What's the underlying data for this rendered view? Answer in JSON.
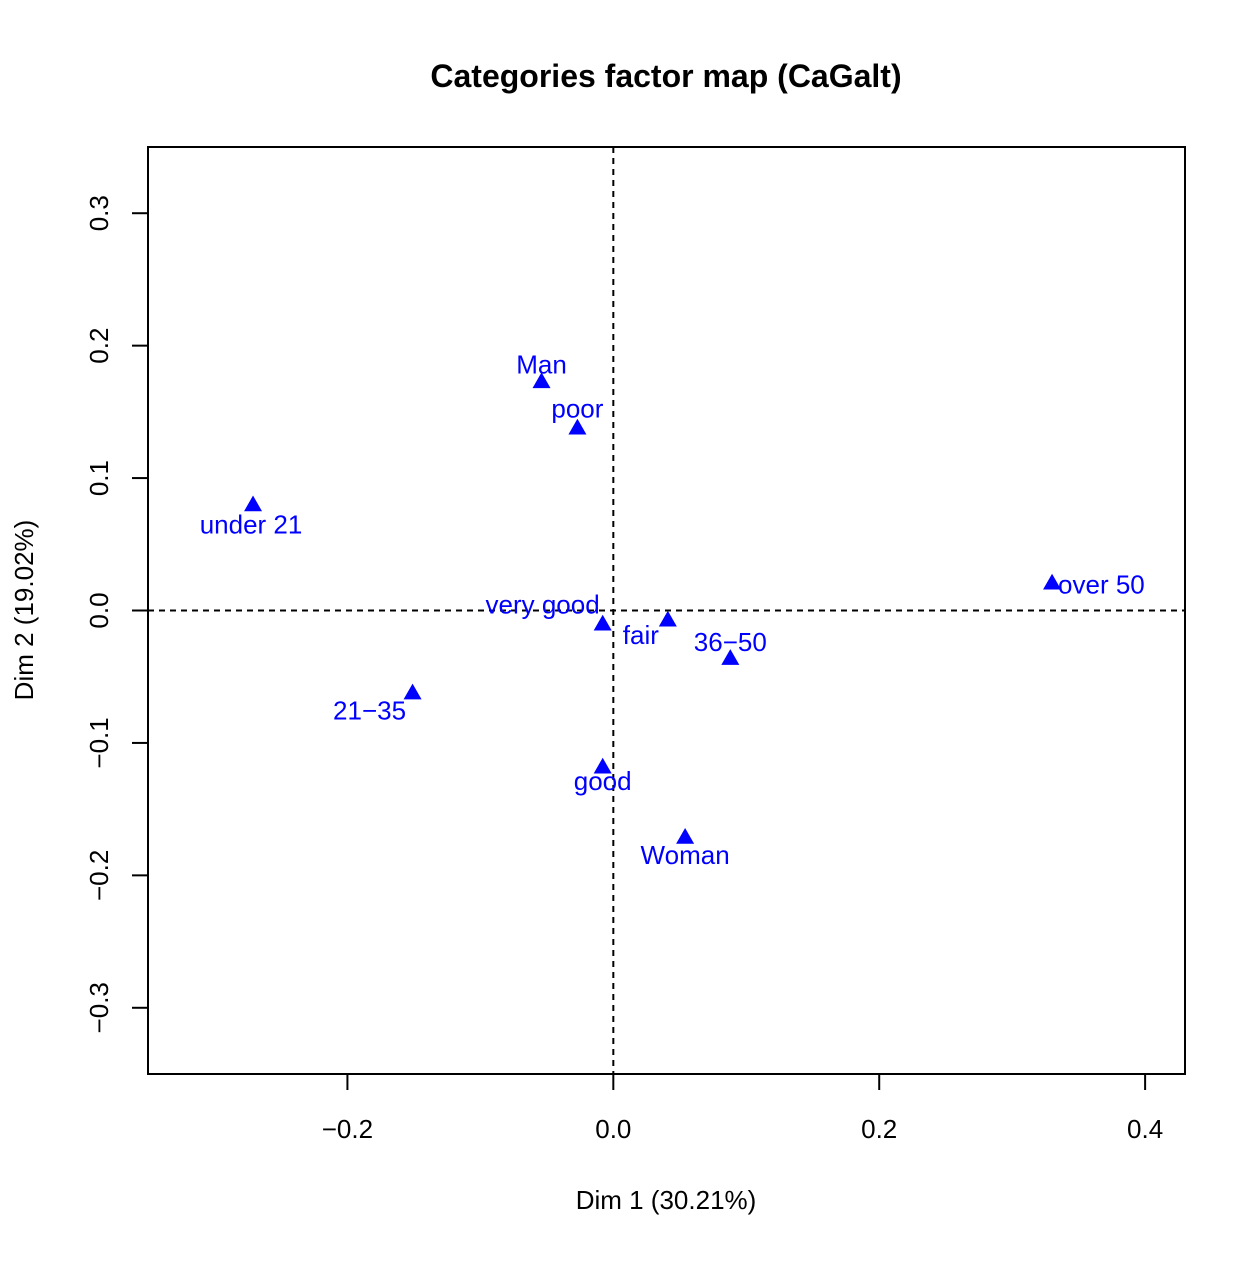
{
  "chart_data": {
    "type": "scatter",
    "title": "Categories factor map (CaGalt)",
    "xlabel": "Dim 1 (30.21%)",
    "ylabel": "Dim 2 (19.02%)",
    "xlim": [
      -0.35,
      0.43
    ],
    "ylim": [
      -0.35,
      0.35
    ],
    "x_ticks": [
      -0.2,
      0.0,
      0.2,
      0.4
    ],
    "x_tick_labels": [
      "−0.2",
      "0.0",
      "0.2",
      "0.4"
    ],
    "y_ticks": [
      -0.3,
      -0.2,
      -0.1,
      0.0,
      0.1,
      0.2,
      0.3
    ],
    "y_tick_labels": [
      "−0.3",
      "−0.2",
      "−0.1",
      "0.0",
      "0.1",
      "0.2",
      "0.3"
    ],
    "reference_lines": {
      "x": 0,
      "y": 0,
      "style": "dashed"
    },
    "grid": false,
    "marker": "triangle",
    "color": "#0000ff",
    "points": [
      {
        "label": "Man",
        "x": -0.054,
        "y": 0.173
      },
      {
        "label": "poor",
        "x": -0.027,
        "y": 0.138
      },
      {
        "label": "under 21",
        "x": -0.271,
        "y": 0.08
      },
      {
        "label": "over 50",
        "x": 0.33,
        "y": 0.021
      },
      {
        "label": "very good",
        "x": -0.008,
        "y": -0.01
      },
      {
        "label": "fair",
        "x": 0.041,
        "y": -0.007
      },
      {
        "label": "36−50",
        "x": 0.088,
        "y": -0.036
      },
      {
        "label": "21−35",
        "x": -0.151,
        "y": -0.062
      },
      {
        "label": "good",
        "x": -0.008,
        "y": -0.118
      },
      {
        "label": "Woman",
        "x": 0.054,
        "y": -0.171
      }
    ]
  }
}
